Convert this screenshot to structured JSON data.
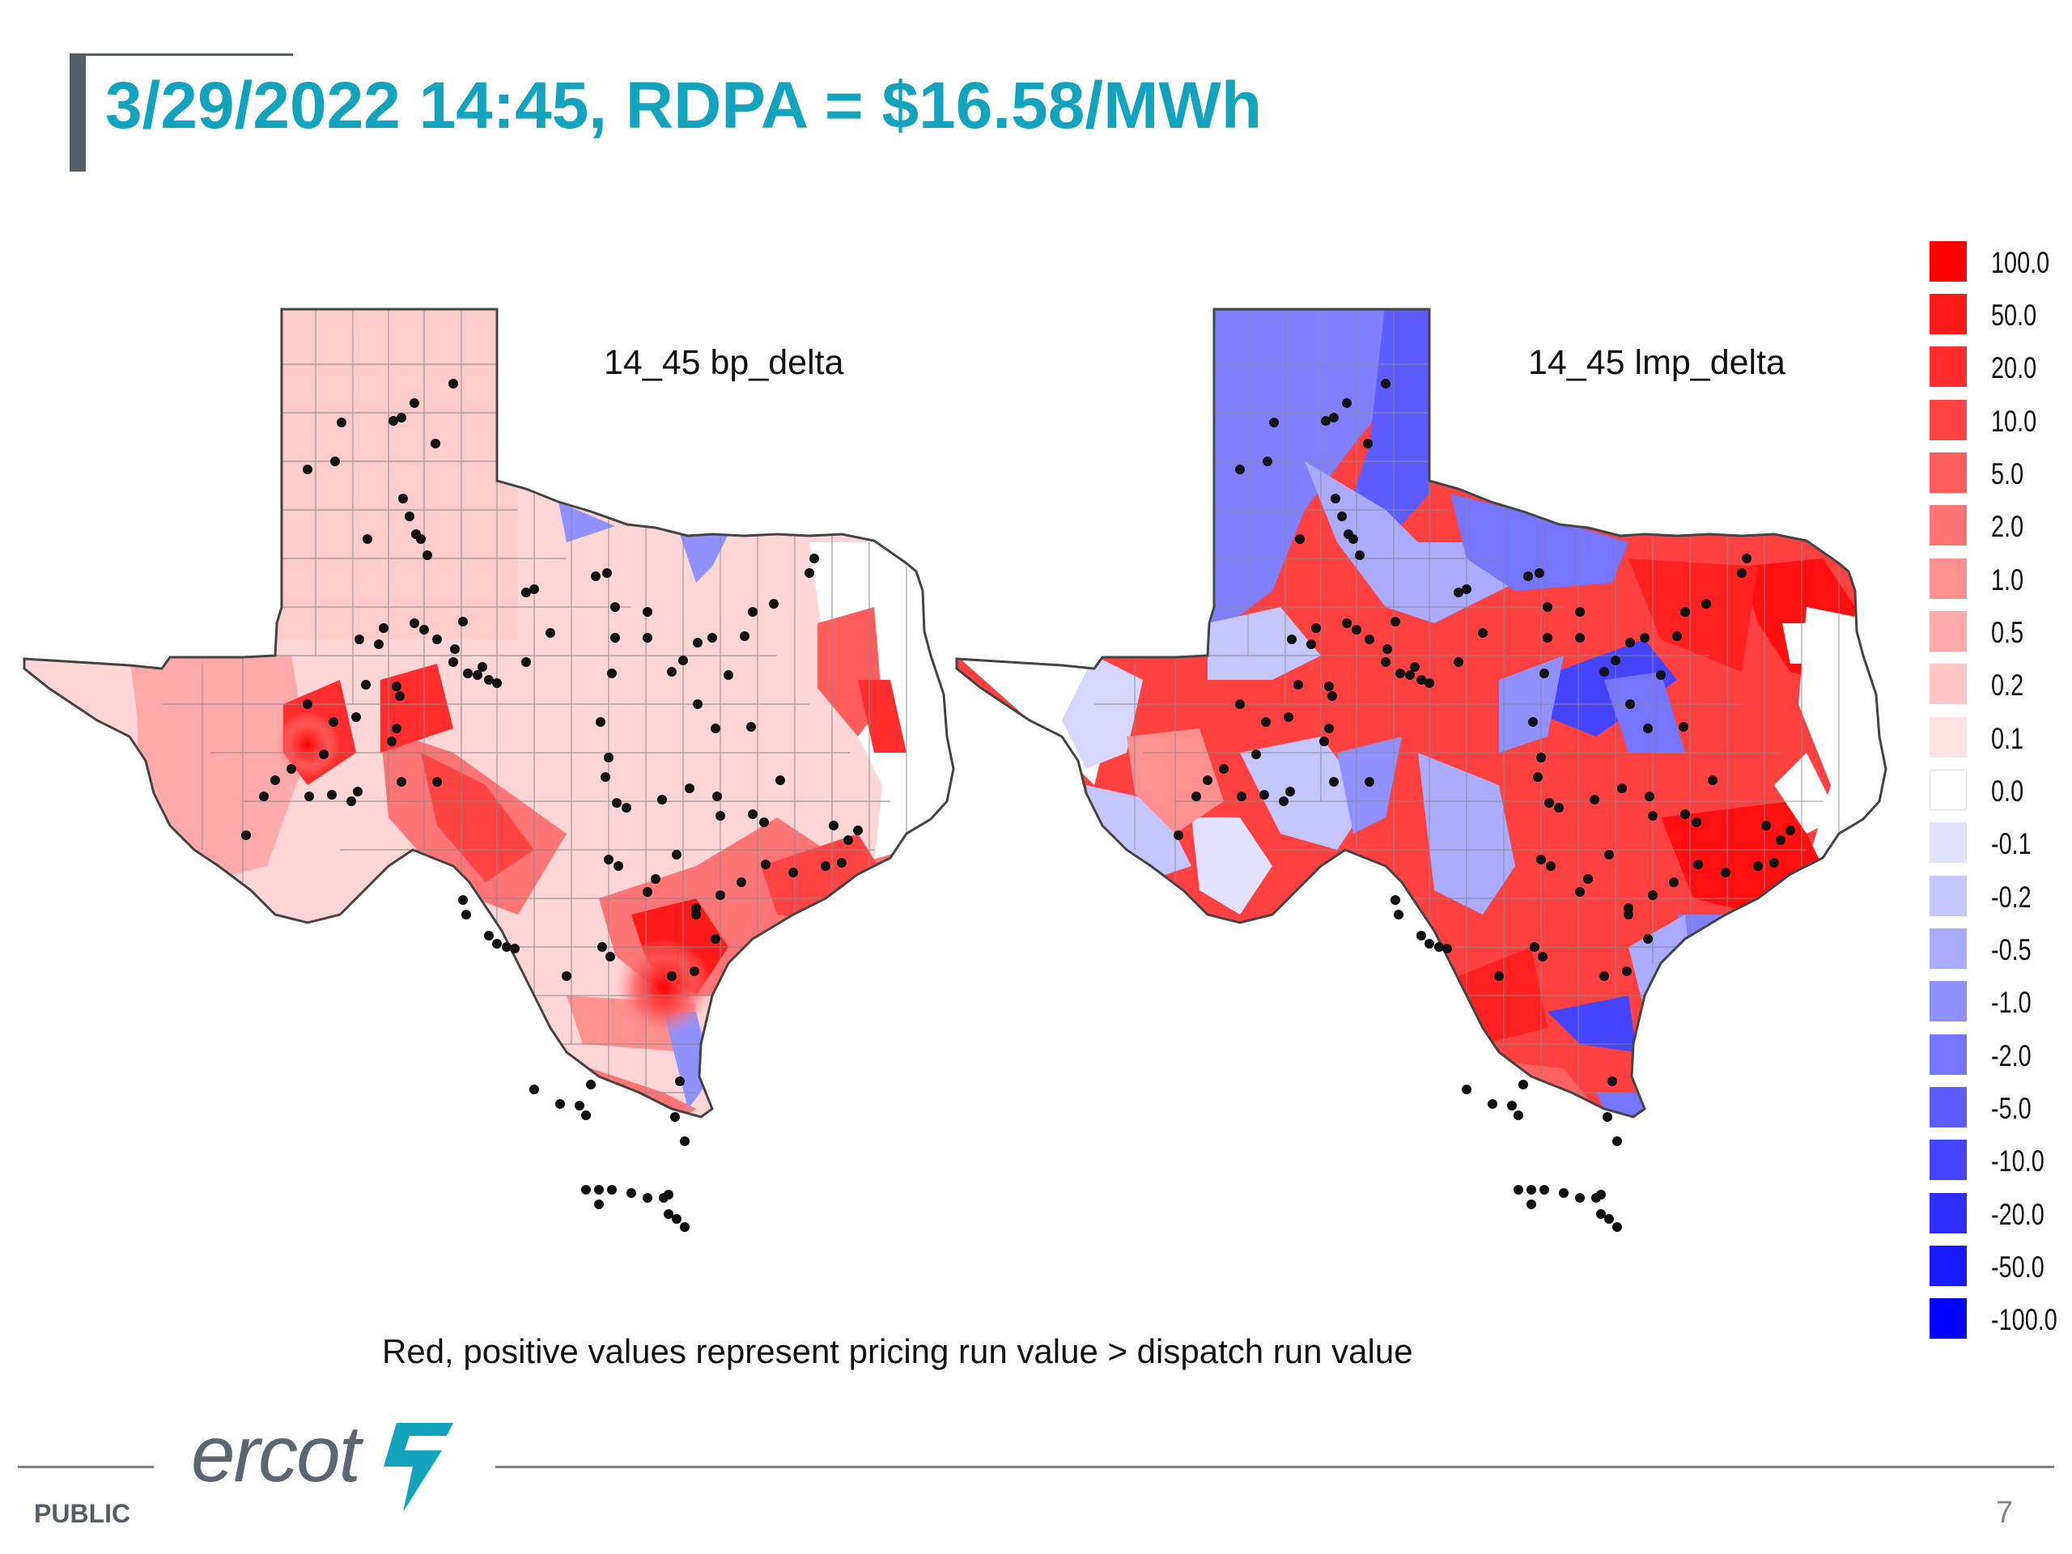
{
  "slide": {
    "title": "3/29/2022 14:45, RDPA = $16.58/MWh",
    "caption": "Red, positive values represent pricing run value > dispatch run value",
    "footer": {
      "classification": "PUBLIC",
      "logo": "ercot",
      "page_number": "7"
    }
  },
  "maps": {
    "left": {
      "label": "14_45 bp_delta"
    },
    "right": {
      "label": "14_45 lmp_delta"
    }
  },
  "legend": {
    "items": [
      {
        "label": "100.0",
        "color": "#ff0000"
      },
      {
        "label": "50.0",
        "color": "#ff1a1a"
      },
      {
        "label": "20.0",
        "color": "#ff2d2d"
      },
      {
        "label": "10.0",
        "color": "#ff4444"
      },
      {
        "label": "5.0",
        "color": "#ff5c5c"
      },
      {
        "label": "2.0",
        "color": "#ff7474"
      },
      {
        "label": "1.0",
        "color": "#ff9090"
      },
      {
        "label": "0.5",
        "color": "#ffaaaa"
      },
      {
        "label": "0.2",
        "color": "#ffc6c6"
      },
      {
        "label": "0.1",
        "color": "#ffe2e2"
      },
      {
        "label": "0.0",
        "color": "#ffffff"
      },
      {
        "label": "-0.1",
        "color": "#e2e2ff"
      },
      {
        "label": "-0.2",
        "color": "#c6c6ff"
      },
      {
        "label": "-0.5",
        "color": "#aaaaff"
      },
      {
        "label": "-1.0",
        "color": "#9090ff"
      },
      {
        "label": "-2.0",
        "color": "#7474ff"
      },
      {
        "label": "-5.0",
        "color": "#5c5cff"
      },
      {
        "label": "-10.0",
        "color": "#4444ff"
      },
      {
        "label": "-20.0",
        "color": "#2d2dff"
      },
      {
        "label": "-50.0",
        "color": "#1a1aff"
      },
      {
        "label": "-100.0",
        "color": "#0000ff"
      }
    ]
  }
}
